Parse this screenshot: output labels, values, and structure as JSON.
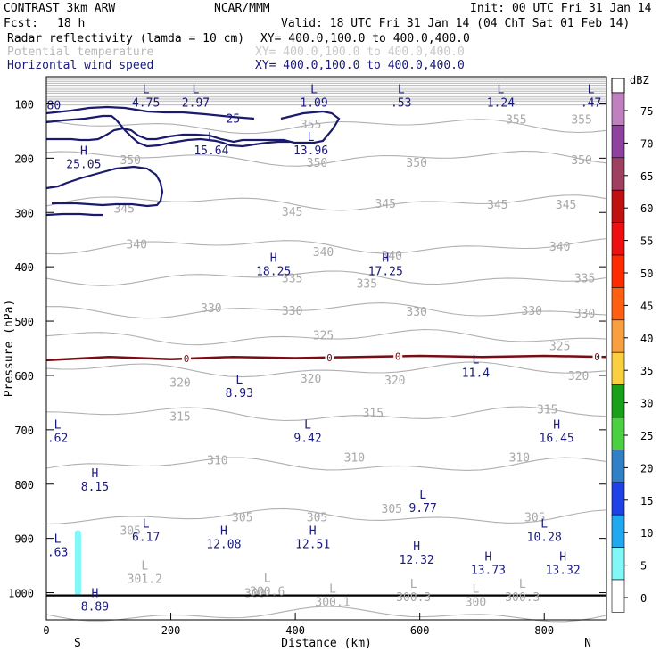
{
  "header": {
    "model": "CONTRAST  3km ARW",
    "org": "NCAR/MMM",
    "init": "Init: 00 UTC Fri 31 Jan 14",
    "fcst_label": "Fcst:",
    "fcst_value": "18 h",
    "valid": "Valid: 18 UTC Fri 31 Jan 14 (04 ChT Sat 01 Feb 14)",
    "fields": [
      {
        "name": "Radar reflectivity (lamda = 10 cm)",
        "xy": "XY= 400.0,100.0 to 400.0,400.0",
        "color": "#000000"
      },
      {
        "name": "Potential temperature",
        "xy": "XY= 400.0,100.0 to 400.0,400.0",
        "color": "#b0b0b0"
      },
      {
        "name": "Horizontal wind speed",
        "xy": "XY= 400.0,100.0 to 400.0,400.0",
        "color": "#1a1a7a"
      }
    ]
  },
  "chart_data": {
    "type": "cross-section",
    "xlabel": "Distance (km)",
    "ylabel": "Pressure (hPa)",
    "xlim": [
      0,
      900
    ],
    "ylim": [
      1050,
      50
    ],
    "x_ticks": [
      0,
      200,
      400,
      600,
      800
    ],
    "y_ticks": [
      100,
      200,
      300,
      400,
      500,
      600,
      700,
      800,
      900,
      1000
    ],
    "x_end_labels": {
      "left": "S",
      "right": "N"
    },
    "theta_contours": [
      {
        "value": 300,
        "p": 1040
      },
      {
        "value": 305,
        "p": 860
      },
      {
        "value": 310,
        "p": 765
      },
      {
        "value": 315,
        "p": 672
      },
      {
        "value": 320,
        "p": 590
      },
      {
        "value": 325,
        "p": 530
      },
      {
        "value": 330,
        "p": 480
      },
      {
        "value": 335,
        "p": 420
      },
      {
        "value": 340,
        "p": 362
      },
      {
        "value": 345,
        "p": 282
      },
      {
        "value": 350,
        "p": 200
      },
      {
        "value": 355,
        "p": 140
      }
    ],
    "theta_labels": [
      {
        "text": "300",
        "x": 335,
        "p": 1000
      },
      {
        "text": "305",
        "x": 135,
        "p": 885
      },
      {
        "text": "305",
        "x": 315,
        "p": 860
      },
      {
        "text": "305",
        "x": 435,
        "p": 860
      },
      {
        "text": "305",
        "x": 555,
        "p": 845
      },
      {
        "text": "305",
        "x": 785,
        "p": 860
      },
      {
        "text": "310",
        "x": 275,
        "p": 755
      },
      {
        "text": "310",
        "x": 495,
        "p": 750
      },
      {
        "text": "310",
        "x": 760,
        "p": 750
      },
      {
        "text": "315",
        "x": 215,
        "p": 675
      },
      {
        "text": "315",
        "x": 525,
        "p": 668
      },
      {
        "text": "315",
        "x": 805,
        "p": 662
      },
      {
        "text": "320",
        "x": 215,
        "p": 612
      },
      {
        "text": "320",
        "x": 425,
        "p": 605
      },
      {
        "text": "320",
        "x": 560,
        "p": 608
      },
      {
        "text": "320",
        "x": 855,
        "p": 600
      },
      {
        "text": "325",
        "x": 445,
        "p": 525
      },
      {
        "text": "325",
        "x": 825,
        "p": 545
      },
      {
        "text": "330",
        "x": 265,
        "p": 475
      },
      {
        "text": "330",
        "x": 395,
        "p": 480
      },
      {
        "text": "330",
        "x": 595,
        "p": 482
      },
      {
        "text": "330",
        "x": 780,
        "p": 480
      },
      {
        "text": "330",
        "x": 865,
        "p": 485
      },
      {
        "text": "335",
        "x": 395,
        "p": 420
      },
      {
        "text": "335",
        "x": 515,
        "p": 430
      },
      {
        "text": "335",
        "x": 865,
        "p": 420
      },
      {
        "text": "340",
        "x": 145,
        "p": 358
      },
      {
        "text": "340",
        "x": 445,
        "p": 372
      },
      {
        "text": "340",
        "x": 555,
        "p": 378
      },
      {
        "text": "340",
        "x": 825,
        "p": 362
      },
      {
        "text": "345",
        "x": 125,
        "p": 292
      },
      {
        "text": "345",
        "x": 395,
        "p": 298
      },
      {
        "text": "345",
        "x": 545,
        "p": 283
      },
      {
        "text": "345",
        "x": 725,
        "p": 285
      },
      {
        "text": "345",
        "x": 835,
        "p": 285
      },
      {
        "text": "350",
        "x": 135,
        "p": 203
      },
      {
        "text": "350",
        "x": 435,
        "p": 208
      },
      {
        "text": "350",
        "x": 595,
        "p": 208
      },
      {
        "text": "350",
        "x": 860,
        "p": 203
      },
      {
        "text": "355",
        "x": 425,
        "p": 137
      },
      {
        "text": "355",
        "x": 755,
        "p": 128
      },
      {
        "text": "355",
        "x": 860,
        "p": 128
      }
    ],
    "reflectivity_zero": {
      "p_values": [
        572,
        566,
        570,
        566,
        568,
        566,
        564,
        566,
        564,
        566
      ],
      "labels": [
        "0",
        "0",
        "0",
        "0"
      ],
      "label_x": [
        225,
        455,
        565,
        885
      ]
    },
    "reflectivity_column": {
      "x": 50,
      "p_top": 885,
      "p_bottom": 1005,
      "dbz": 8
    },
    "wind_contour_label": {
      "text": "25",
      "x": 300,
      "p": 126
    },
    "wind_extrema": [
      {
        "type": "L",
        "value": "4.75",
        "x": 160,
        "p": 80
      },
      {
        "type": "L",
        "value": "2.97",
        "x": 240,
        "p": 80
      },
      {
        "type": "L",
        "value": "1.09",
        "x": 430,
        "p": 80
      },
      {
        "type": "L",
        "value": ".53",
        "x": 570,
        "p": 80
      },
      {
        "type": "L",
        "value": "1.24",
        "x": 730,
        "p": 80
      },
      {
        "type": "L",
        "value": ".47",
        "x": 875,
        "p": 80
      },
      {
        "type": "H",
        "value": "25.05",
        "x": 60,
        "p": 194
      },
      {
        "type": "L",
        "value": "15.64",
        "x": 265,
        "p": 168
      },
      {
        "type": "L",
        "value": "13.96",
        "x": 425,
        "p": 168
      },
      {
        "type": "H",
        "value": "18.25",
        "x": 365,
        "p": 391
      },
      {
        "type": "H",
        "value": "17.25",
        "x": 545,
        "p": 391
      },
      {
        "type": "L",
        "value": "11.4",
        "x": 690,
        "p": 578
      },
      {
        "type": "L",
        "value": "8.93",
        "x": 310,
        "p": 615
      },
      {
        "type": "L",
        "value": ".62",
        "x": 18,
        "p": 698
      },
      {
        "type": "L",
        "value": "9.42",
        "x": 420,
        "p": 698
      },
      {
        "type": "H",
        "value": "16.45",
        "x": 820,
        "p": 698
      },
      {
        "type": "H",
        "value": "8.15",
        "x": 78,
        "p": 787
      },
      {
        "type": "L",
        "value": "9.77",
        "x": 605,
        "p": 827
      },
      {
        "type": "L",
        "value": "6.17",
        "x": 160,
        "p": 880
      },
      {
        "type": "L",
        "value": "10.28",
        "x": 800,
        "p": 880
      },
      {
        "type": "H",
        "value": "12.08",
        "x": 285,
        "p": 893
      },
      {
        "type": "H",
        "value": "12.51",
        "x": 428,
        "p": 893
      },
      {
        "type": "L",
        "value": ".63",
        "x": 18,
        "p": 908
      },
      {
        "type": "H",
        "value": "12.32",
        "x": 595,
        "p": 922
      },
      {
        "type": "H",
        "value": "13.73",
        "x": 710,
        "p": 941
      },
      {
        "type": "H",
        "value": "13.32",
        "x": 830,
        "p": 941
      },
      {
        "type": "H",
        "value": "8.89",
        "x": 78,
        "p": 1008
      }
    ],
    "theta_extrema": [
      {
        "type": "L",
        "value": "301.2",
        "x": 158,
        "p": 957
      },
      {
        "type": "L",
        "value": "300.6",
        "x": 355,
        "p": 980
      },
      {
        "type": "L",
        "value": "300.1",
        "x": 460,
        "p": 1000
      },
      {
        "type": "L",
        "value": "300.3",
        "x": 590,
        "p": 991
      },
      {
        "type": "L",
        "value": "300",
        "x": 690,
        "p": 1000
      },
      {
        "type": "L",
        "value": "300.3",
        "x": 765,
        "p": 991
      }
    ],
    "top_label": {
      "text": "80",
      "x": 12,
      "p": 80
    }
  },
  "colorbar": {
    "unit": "dBZ",
    "ticks": [
      "75",
      "70",
      "65",
      "60",
      "55",
      "50",
      "45",
      "40",
      "35",
      "30",
      "25",
      "20",
      "15",
      "10",
      "5",
      "0"
    ],
    "colors": [
      "#c080c0",
      "#9040a0",
      "#a04060",
      "#c01010",
      "#ee1010",
      "#ff2a00",
      "#ff6010",
      "#f8a040",
      "#fbd040",
      "#18a018",
      "#4ad040",
      "#3080c8",
      "#2040e8",
      "#20a8f0",
      "#80f8f8",
      "#ffffff"
    ]
  }
}
